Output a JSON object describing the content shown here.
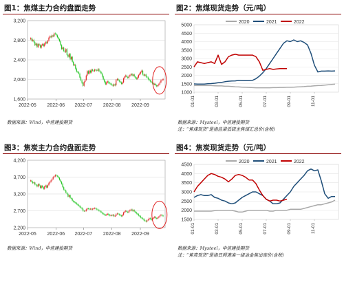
{
  "colors": {
    "up": "#e02020",
    "down": "#22c422",
    "s2020": "#a9a9a9",
    "s2021": "#1f4e79",
    "s2022": "#c00000",
    "title_rule": "#8a0000",
    "highlight": "#e02020"
  },
  "panels": [
    {
      "title": "图1：焦煤主力合约盘面走势",
      "source": "数据来源：Wind，中信建投期货",
      "note": ""
    },
    {
      "title": "图2：焦煤现货走势（元/吨）",
      "source": "数据来源：Mysteel，中信建投期货",
      "note": "注：“焦煤现货”是指吕梁低硫主焦煤汇总价(含税)"
    },
    {
      "title": "图3：焦炭主力合约盘面走势",
      "source": "数据来源：Wind，中信建投期货",
      "note": ""
    },
    {
      "title": "图4：焦炭现货走势（元/吨）",
      "source": "数据来源：Mysteel，中信建投期货",
      "note": "注：“焦炭现货”是指日照港准一级冶金焦出库价(含税)"
    }
  ],
  "chart_data": [
    {
      "type": "candlestick",
      "xticks": [
        "2022-05",
        "2022-06",
        "2022-07",
        "2022-08",
        "2022-09"
      ],
      "yticks": [
        "1,600",
        "2,000",
        "2,400",
        "2,800",
        "3,200"
      ],
      "ylim": [
        1600,
        3200
      ],
      "x_end": "2022-09-28",
      "closes": [
        2840,
        2790,
        2810,
        2760,
        2700,
        2730,
        2660,
        2720,
        2700,
        2650,
        2700,
        2720,
        2680,
        2730,
        2760,
        2740,
        2790,
        2850,
        2880,
        2860,
        2900,
        2880,
        2940,
        2930,
        2900,
        2860,
        2820,
        2780,
        2700,
        2620,
        2650,
        2580,
        2560,
        2620,
        2500,
        2460,
        2520,
        2410,
        2460,
        2360,
        2290,
        2300,
        2220,
        2160,
        2150,
        2120,
        2040,
        1980,
        1930,
        1870,
        1950,
        1990,
        2080,
        2170,
        2120,
        2180,
        2140,
        2200,
        2180,
        2170,
        2200,
        2190,
        2180,
        2210,
        2170,
        2150,
        2120,
        2060,
        2000,
        1950,
        1900,
        1940,
        1960,
        1930,
        1920,
        1900,
        1890,
        1870,
        1900,
        1880,
        1990,
        2010,
        1980,
        1960,
        1940,
        1910,
        1940,
        2020,
        2060,
        2080,
        2050,
        2030,
        2070,
        2090,
        2110,
        2080,
        2100,
        2060,
        2030,
        2010,
        2040,
        2090,
        2120,
        2150,
        2180,
        2100,
        2080,
        2100,
        2060,
        2040,
        2010,
        1980,
        1960,
        1940,
        1920,
        1900,
        1910,
        1880,
        1860,
        1880,
        1900,
        1940,
        1980,
        1990,
        2010
      ]
    },
    {
      "type": "line",
      "xticks": [
        "01-01",
        "03-01",
        "05-01",
        "07-01",
        "09-01",
        "11-01"
      ],
      "yticks": [
        "1000",
        "1500",
        "2000",
        "2500",
        "3000",
        "3500",
        "4000",
        "4500",
        "5000"
      ],
      "ylim": [
        1000,
        5000
      ],
      "series": [
        {
          "name": "2020",
          "values": [
            1390,
            1390,
            1390,
            1390,
            1390,
            1390,
            1380,
            1370,
            1370,
            1350,
            1350,
            1340,
            1320,
            1310,
            1300,
            1290,
            1280,
            1270,
            1260,
            1260,
            1260,
            1260,
            1260,
            1270,
            1270,
            1280,
            1280,
            1290,
            1290,
            1300,
            1310,
            1320,
            1330,
            1350,
            1360,
            1380,
            1390,
            1400,
            1420,
            1440,
            1460,
            1480
          ]
        },
        {
          "name": "2021",
          "values": [
            1490,
            1480,
            1480,
            1480,
            1500,
            1510,
            1530,
            1560,
            1580,
            1620,
            1650,
            1660,
            1670,
            1700,
            1690,
            1680,
            1690,
            1700,
            1800,
            1950,
            2150,
            2400,
            2700,
            3000,
            3300,
            3600,
            3900,
            4050,
            4000,
            4100,
            4000,
            4050,
            3950,
            3800,
            3300,
            2600,
            2200,
            2250,
            2250,
            2260,
            2250,
            2260
          ]
        },
        {
          "name": "2022",
          "values": [
            2500,
            2800,
            2750,
            2700,
            2750,
            2800,
            2700,
            3200,
            2650,
            2800,
            3100,
            3200,
            3250,
            3200,
            3200,
            3200,
            3200,
            3200,
            3100,
            2800,
            2300,
            2350,
            2400,
            2350,
            2380,
            2400,
            2400,
            2400
          ]
        }
      ]
    },
    {
      "type": "candlestick",
      "xticks": [
        "2022-05",
        "2022-06",
        "2022-07",
        "2022-08",
        "2022-09"
      ],
      "yticks": [
        "2,200",
        "2,700",
        "3,200",
        "3,700",
        "4,200"
      ],
      "ylim": [
        2200,
        4200
      ],
      "x_end": "2022-09-28",
      "closes": [
        3600,
        3560,
        3520,
        3540,
        3480,
        3460,
        3420,
        3490,
        3450,
        3380,
        3440,
        3400,
        3350,
        3420,
        3450,
        3390,
        3460,
        3520,
        3560,
        3600,
        3640,
        3700,
        3720,
        3760,
        3740,
        3720,
        3680,
        3620,
        3560,
        3500,
        3400,
        3330,
        3300,
        3240,
        3200,
        3120,
        3160,
        3080,
        3060,
        3000,
        2970,
        2950,
        2930,
        2900,
        2880,
        2850,
        2820,
        2790,
        2760,
        2700,
        2690,
        2700,
        2740,
        2770,
        2760,
        2750,
        2760,
        2740,
        2760,
        2770,
        2780,
        2760,
        2740,
        2720,
        2700,
        2680,
        2650,
        2620,
        2600,
        2580,
        2570,
        2590,
        2610,
        2580,
        2560,
        2570,
        2560,
        2580,
        2540,
        2550,
        2600,
        2620,
        2600,
        2580,
        2560,
        2540,
        2580,
        2650,
        2680,
        2700,
        2670,
        2650,
        2700,
        2720,
        2740,
        2700,
        2720,
        2680,
        2650,
        2620,
        2600,
        2560,
        2540,
        2500,
        2480,
        2460,
        2420,
        2400,
        2380,
        2420,
        2440,
        2480,
        2460,
        2430,
        2470,
        2500,
        2520,
        2480,
        2470,
        2500,
        2520,
        2560,
        2580,
        2560,
        2540
      ]
    },
    {
      "type": "line",
      "xticks": [
        "01-01",
        "03-01",
        "05-01",
        "07-01",
        "09-01",
        "11-01"
      ],
      "yticks": [
        "1500",
        "2000",
        "2500",
        "3000",
        "3500",
        "4000",
        "4500"
      ],
      "ylim": [
        1500,
        4500
      ],
      "series": [
        {
          "name": "2020",
          "values": [
            1950,
            1950,
            1950,
            1950,
            1950,
            1950,
            1980,
            2000,
            2000,
            2000,
            2000,
            1990,
            1950,
            1900,
            1900,
            1950,
            2000,
            2000,
            2000,
            2000,
            2000,
            2000,
            1950,
            1950,
            2000,
            2000,
            2000,
            2000,
            2050,
            2050,
            2050,
            2050,
            2100,
            2150,
            2200,
            2250,
            2300,
            2300,
            2350,
            2400,
            2450,
            2550
          ]
        },
        {
          "name": "2021",
          "values": [
            2700,
            2800,
            2850,
            2800,
            2800,
            2850,
            2700,
            2650,
            2550,
            2500,
            2400,
            2350,
            2400,
            2550,
            2700,
            2800,
            2900,
            3000,
            3000,
            2900,
            2800,
            2600,
            2500,
            2350,
            2350,
            2400,
            2600,
            2800,
            3000,
            3300,
            3500,
            3700,
            3900,
            4150,
            4250,
            4150,
            4200,
            3600,
            2900,
            2650,
            2750,
            2750
          ]
        },
        {
          "name": "2022",
          "values": [
            3000,
            3300,
            3500,
            3700,
            3900,
            4000,
            3950,
            3850,
            3800,
            3700,
            3550,
            3700,
            3900,
            3950,
            3900,
            3800,
            3650,
            3650,
            3450,
            3100,
            2800,
            2600,
            2500,
            2550,
            2550,
            2500,
            2550,
            2600
          ]
        }
      ]
    }
  ]
}
